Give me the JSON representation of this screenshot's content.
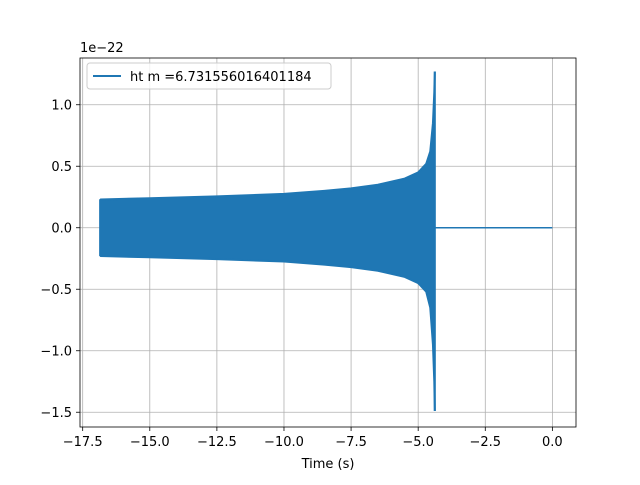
{
  "chart_data": {
    "type": "line",
    "title": "",
    "xlabel": "Time (s)",
    "ylabel": "",
    "y_offset_text": "1e−22",
    "xlim": [
      -17.6,
      0.88
    ],
    "ylim": [
      -1.62,
      1.38
    ],
    "y_scale_note": "values in units of 1e-22",
    "x_ticks": [
      -17.5,
      -15.0,
      -12.5,
      -10.0,
      -7.5,
      -5.0,
      -2.5,
      0.0
    ],
    "x_tick_labels": [
      "−17.5",
      "−15.0",
      "−12.5",
      "−10.0",
      "−7.5",
      "−5.0",
      "−2.5",
      "0.0"
    ],
    "y_ticks": [
      1.0,
      0.5,
      0.0,
      -0.5,
      -1.0,
      -1.5
    ],
    "y_tick_labels": [
      "1.0",
      "0.5",
      "0.0",
      "−0.5",
      "−1.0",
      "−1.5"
    ],
    "grid": true,
    "legend_position": "top-left",
    "series": [
      {
        "name": "ht m =6.731556016401184",
        "color": "#1f77b4",
        "start_time": -16.85,
        "merger_time": -4.38,
        "end_time": 0.0,
        "envelope_upper": [
          [
            -16.85,
            0.23
          ],
          [
            -15.0,
            0.24
          ],
          [
            -12.5,
            0.255
          ],
          [
            -10.0,
            0.275
          ],
          [
            -8.5,
            0.3
          ],
          [
            -7.5,
            0.32
          ],
          [
            -6.5,
            0.35
          ],
          [
            -5.5,
            0.4
          ],
          [
            -5.0,
            0.45
          ],
          [
            -4.7,
            0.52
          ],
          [
            -4.55,
            0.62
          ],
          [
            -4.45,
            0.85
          ],
          [
            -4.4,
            1.1
          ],
          [
            -4.38,
            1.27
          ]
        ],
        "envelope_lower": [
          [
            -16.85,
            -0.23
          ],
          [
            -15.0,
            -0.24
          ],
          [
            -12.5,
            -0.255
          ],
          [
            -10.0,
            -0.275
          ],
          [
            -8.5,
            -0.3
          ],
          [
            -7.5,
            -0.32
          ],
          [
            -6.5,
            -0.35
          ],
          [
            -5.5,
            -0.4
          ],
          [
            -5.0,
            -0.45
          ],
          [
            -4.7,
            -0.52
          ],
          [
            -4.55,
            -0.65
          ],
          [
            -4.45,
            -0.95
          ],
          [
            -4.4,
            -1.25
          ],
          [
            -4.38,
            -1.49
          ]
        ],
        "post_merger_value": 0.0
      }
    ]
  }
}
